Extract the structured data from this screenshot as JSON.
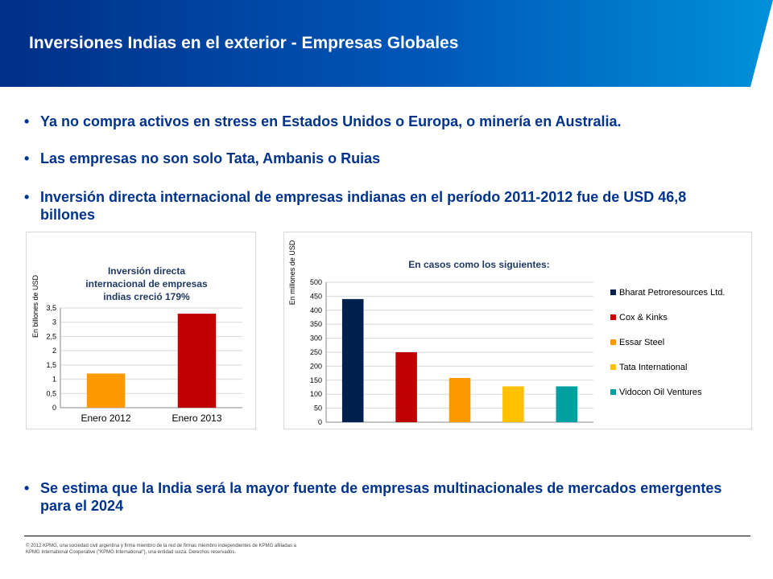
{
  "colors": {
    "header_dark": "#002F87",
    "header_light": "#0091DA",
    "title_text": "#FFFFFF",
    "body_text": "#00338D"
  },
  "header": {
    "title": "Inversiones Indias en el exterior  - Empresas Globales"
  },
  "bullets": [
    "Ya no compra activos en stress en Estados Unidos o Europa, o minería en Australia.",
    "Las empresas no son solo Tata, Ambanis o Ruias",
    "Inversión directa internacional de empresas indianas en el período 2011-2012 fue de USD 46,8 billones"
  ],
  "bottom_bullet": "Se estima que la India será la mayor fuente de empresas multinacionales de mercados emergentes para el 2024",
  "footer": {
    "note": "© 2012 KPMG, una sociedad civil argentina y firma miembro de la red de firmas miembro independientes de KPMG afiliadas a KPMG International Cooperative (\"KPMG International\"), una entidad suiza. Derechos reservados."
  },
  "chart_data": [
    {
      "type": "bar",
      "title_lines": [
        "Inversión directa",
        "internacional de empresas",
        "indias creció 179%"
      ],
      "ylabel": "En billones de USD",
      "categories": [
        "Enero 2012",
        "Enero 2013"
      ],
      "values": [
        1.2,
        3.3
      ],
      "bar_colors": [
        "#FF9900",
        "#C00000"
      ],
      "ylim": [
        0,
        3.5
      ],
      "yticks": [
        "0",
        "0,5",
        "1",
        "1,5",
        "2",
        "2,5",
        "3",
        "3,5"
      ],
      "grid": true
    },
    {
      "type": "bar",
      "title": "En casos como los siguientes:",
      "ylabel": "En millones de USD",
      "categories": [
        "Bharat Petroresources Ltd.",
        "Cox & Kinks",
        "Essar Steel",
        "Tata International",
        "Vidocon Oil Ventures"
      ],
      "values": [
        440,
        250,
        158,
        128,
        128
      ],
      "bar_colors": [
        "#00204D",
        "#C00000",
        "#FF9900",
        "#FFC000",
        "#00A0A0"
      ],
      "ylim": [
        0,
        500
      ],
      "yticks": [
        "0",
        "50",
        "100",
        "150",
        "200",
        "250",
        "300",
        "350",
        "400",
        "450",
        "500"
      ],
      "grid": true,
      "legend_position": "right"
    }
  ]
}
